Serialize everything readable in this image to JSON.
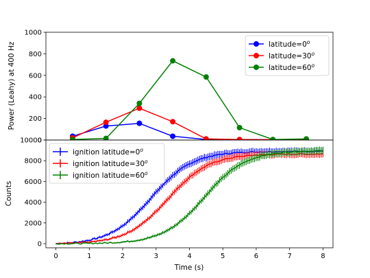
{
  "chart_data": [
    {
      "type": "line",
      "xlabel": "",
      "ylabel": "Power (Leahy) at 400 Hz",
      "xlim": [
        -0.3,
        8.3
      ],
      "ylim": [
        0,
        1000
      ],
      "yticks": [
        "0",
        "200",
        "400",
        "600",
        "800",
        "1000"
      ],
      "legend_position": "top-right",
      "series": [
        {
          "name": "latitude=0",
          "sup": "o",
          "color": "#0000ff",
          "x": [
            0.5,
            1.5,
            2.5,
            3.5,
            4.5,
            5.5,
            6.5,
            7.5
          ],
          "y": [
            35,
            130,
            155,
            35,
            5,
            3,
            2,
            2
          ]
        },
        {
          "name": "latitude=30",
          "sup": "o",
          "color": "#ff0000",
          "x": [
            0.5,
            1.5,
            2.5,
            3.5,
            4.5,
            5.5,
            6.5,
            7.5
          ],
          "y": [
            20,
            165,
            295,
            170,
            10,
            5,
            3,
            3
          ]
        },
        {
          "name": "latitude=60",
          "sup": "o",
          "color": "#008000",
          "x": [
            0.5,
            1.5,
            2.5,
            3.5,
            4.5,
            5.5,
            6.5,
            7.5
          ],
          "y": [
            5,
            15,
            340,
            735,
            585,
            115,
            5,
            10
          ]
        }
      ]
    },
    {
      "type": "line",
      "error_bars": true,
      "xlabel": "Time (s)",
      "ylabel": "Counts",
      "xlim": [
        -0.3,
        8.3
      ],
      "ylim": [
        -400,
        10000
      ],
      "xticks": [
        "0",
        "1",
        "2",
        "3",
        "4",
        "5",
        "6",
        "7",
        "8"
      ],
      "yticks": [
        "0",
        "2000",
        "4000",
        "6000",
        "8000",
        "10000"
      ],
      "legend_position": "top-left",
      "series": [
        {
          "name": "ignition latitude=0",
          "sup": "o",
          "color": "#0000ff",
          "model": {
            "plateau": 9000,
            "midpoint": 2.85,
            "width": 0.62
          }
        },
        {
          "name": "ignition latitude=30",
          "sup": "o",
          "color": "#ff0000",
          "model": {
            "plateau": 8700,
            "midpoint": 3.35,
            "width": 0.62
          }
        },
        {
          "name": "ignition latitude=60",
          "sup": "o",
          "color": "#008000",
          "model": {
            "plateau": 9000,
            "midpoint": 4.45,
            "width": 0.62
          }
        }
      ]
    }
  ]
}
